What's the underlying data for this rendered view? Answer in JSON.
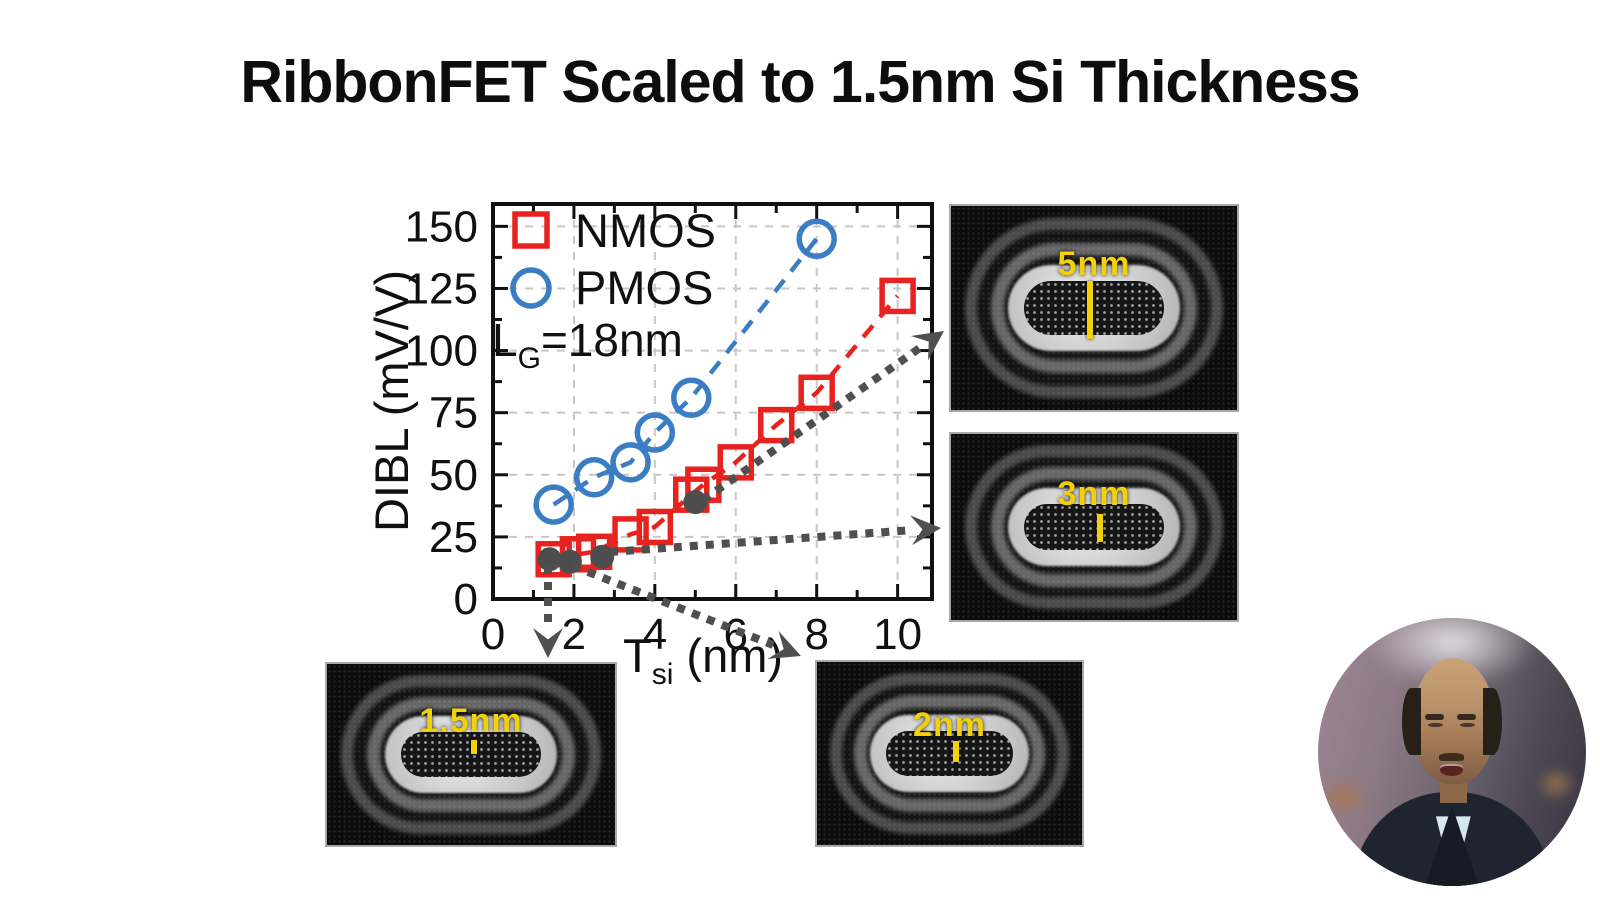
{
  "slide": {
    "title": "RibbonFET Scaled to 1.5nm Si Thickness"
  },
  "colors": {
    "nmos": "#e8231f",
    "pmos": "#3a7dc5",
    "tem_dot": "#4d4d4d",
    "arrow": "#4f4f4f",
    "grid": "#c7c7c7",
    "axis": "#101010",
    "tem_label": "#f2d00a"
  },
  "chart_data": {
    "type": "scatter",
    "title": "",
    "xlabel_main": "T",
    "xlabel_sub": "si",
    "xlabel_rest": " (nm)",
    "ylabel": "DIBL (mV/V)",
    "annotation": {
      "main": "L",
      "sub": "G",
      "rest": "=18nm"
    },
    "xlim": [
      0,
      10.85
    ],
    "ylim": [
      0,
      159
    ],
    "x_major_ticks": [
      0,
      2,
      4,
      6,
      8,
      10
    ],
    "x_minor_ticks": [
      1,
      3,
      5,
      7,
      9
    ],
    "y_major_ticks": [
      0,
      25,
      50,
      75,
      100,
      125,
      150
    ],
    "y_minor_ticks": [
      12.5,
      37.5,
      62.5,
      87.5,
      112.5,
      137.5
    ],
    "grid": true,
    "legend_position": "top-left",
    "series": [
      {
        "name": "NMOS",
        "marker": "square",
        "color": "#e8231f",
        "line": "dashed",
        "points": [
          [
            1.5,
            16
          ],
          [
            2.1,
            18
          ],
          [
            2.5,
            19
          ],
          [
            3.4,
            26
          ],
          [
            4,
            29
          ],
          [
            4.9,
            42
          ],
          [
            5.2,
            46
          ],
          [
            6,
            55
          ],
          [
            7,
            70
          ],
          [
            8,
            83
          ],
          [
            10,
            122
          ]
        ]
      },
      {
        "name": "PMOS",
        "marker": "circle",
        "color": "#3a7dc5",
        "line": "dashed",
        "points": [
          [
            1.5,
            38
          ],
          [
            2.5,
            49
          ],
          [
            3.4,
            55
          ],
          [
            4,
            67
          ],
          [
            4.9,
            81
          ],
          [
            8,
            145
          ]
        ]
      },
      {
        "name": "tem-reference-dots",
        "marker": "dot",
        "color": "#4d4d4d",
        "line": "none",
        "points": [
          [
            1.4,
            16
          ],
          [
            1.9,
            15
          ],
          [
            2.7,
            17
          ],
          [
            5,
            39
          ]
        ]
      }
    ]
  },
  "tem_images": [
    {
      "id": "tem-5nm",
      "label": "5nm"
    },
    {
      "id": "tem-3nm",
      "label": "3nm"
    },
    {
      "id": "tem-1p5nm",
      "label": "1.5nm"
    },
    {
      "id": "tem-2nm",
      "label": "2nm"
    }
  ],
  "arrows": [
    {
      "name": "arrow-to-5nm-image",
      "from": [
        703,
        500
      ],
      "to": [
        944,
        331
      ]
    },
    {
      "name": "arrow-to-3nm-image",
      "from": [
        610,
        552
      ],
      "to": [
        941,
        528
      ]
    },
    {
      "name": "arrow-to-1.5nm-image",
      "from": [
        548,
        566
      ],
      "to": [
        548,
        658
      ]
    },
    {
      "name": "arrow-to-2nm-image",
      "from": [
        573,
        566
      ],
      "to": [
        801,
        656
      ]
    }
  ]
}
